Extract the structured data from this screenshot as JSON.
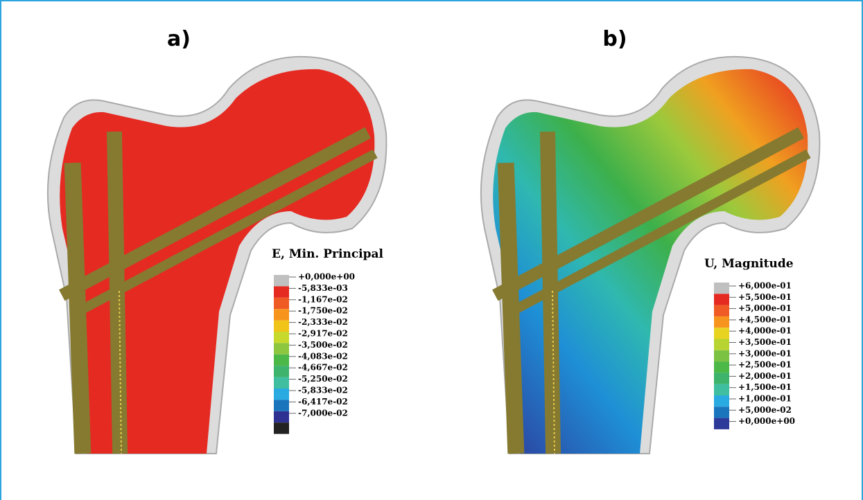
{
  "panels": [
    {
      "label": "a)",
      "legend": {
        "title": "E, Min. Principal",
        "entries": [
          "+0,000e+00",
          "-5,833e-03",
          "-1,167e-02",
          "-1,750e-02",
          "-2,333e-02",
          "-2,917e-02",
          "-3,500e-02",
          "-4,083e-02",
          "-4,667e-02",
          "-5,250e-02",
          "-5,833e-02",
          "-6,417e-02",
          "-7,000e-02"
        ]
      }
    },
    {
      "label": "b)",
      "legend": {
        "title": "U, Magnitude",
        "entries": [
          "+6,000e-01",
          "+5,500e-01",
          "+5,000e-01",
          "+4,500e-01",
          "+4,000e-01",
          "+3,500e-01",
          "+3,000e-01",
          "+2,500e-01",
          "+2,000e-01",
          "+1,500e-01",
          "+1,000e-01",
          "+5,000e-02",
          "+0,000e+00"
        ]
      }
    }
  ]
}
